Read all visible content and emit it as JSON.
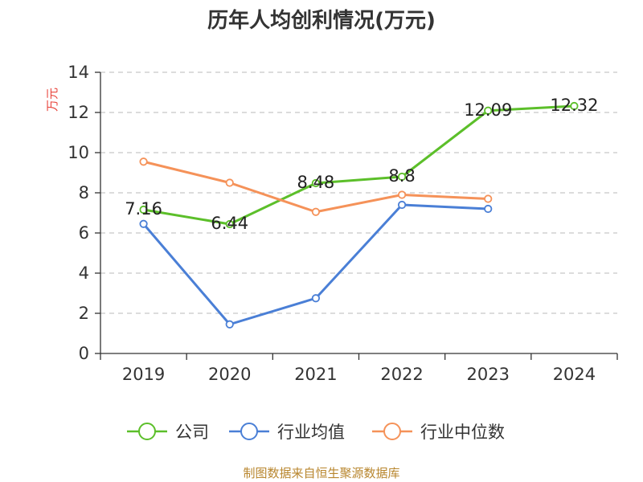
{
  "chart_data": {
    "type": "line",
    "title": "历年人均创利情况(万元)",
    "xlabel": "",
    "ylabel": "万元",
    "categories": [
      "2019",
      "2020",
      "2021",
      "2022",
      "2023",
      "2024"
    ],
    "ylim": [
      0,
      14
    ],
    "yticks": [
      0,
      2,
      4,
      6,
      8,
      10,
      12,
      14
    ],
    "grid": true,
    "legend_position": "bottom",
    "series": [
      {
        "name": "公司",
        "color": "#5cbf2a",
        "values": [
          7.16,
          6.44,
          8.48,
          8.8,
          12.09,
          12.32
        ],
        "labels": [
          "7.16",
          "6.44",
          "8.48",
          "8.8",
          "12.09",
          "12.32"
        ]
      },
      {
        "name": "行业均值",
        "color": "#4a7fd6",
        "values": [
          6.45,
          1.45,
          2.75,
          7.4,
          7.2,
          null
        ]
      },
      {
        "name": "行业中位数",
        "color": "#f59259",
        "values": [
          9.55,
          8.5,
          7.05,
          7.9,
          7.7,
          null
        ]
      }
    ],
    "source": "制图数据来自恒生聚源数据库"
  }
}
